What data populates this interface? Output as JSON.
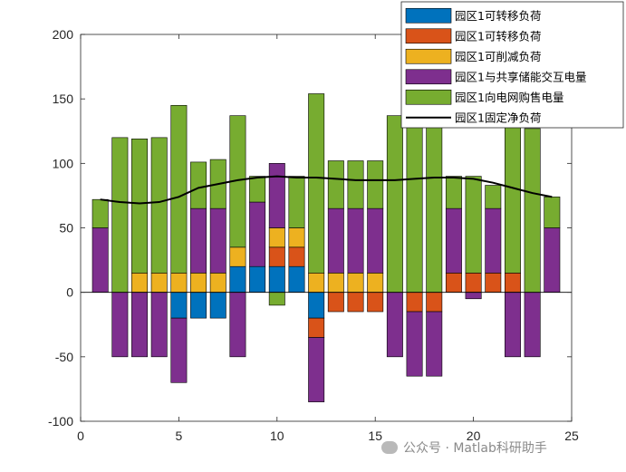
{
  "watermark": "公众号 · Matlab科研助手",
  "chart_data": {
    "type": "bar",
    "stacked": true,
    "x": [
      1,
      2,
      3,
      4,
      5,
      6,
      7,
      8,
      9,
      10,
      11,
      12,
      13,
      14,
      15,
      16,
      17,
      18,
      19,
      20,
      21,
      22,
      23,
      24
    ],
    "xlim": [
      0,
      25
    ],
    "ylim": [
      -100,
      200
    ],
    "xticks": [
      0,
      5,
      10,
      15,
      20,
      25
    ],
    "yticks": [
      -100,
      -50,
      0,
      50,
      100,
      150,
      200
    ],
    "legend_position": "top-right",
    "series": [
      {
        "name": "园区1可转移负荷",
        "color": "#0072BD",
        "values": [
          0,
          0,
          0,
          0,
          -20,
          -20,
          -20,
          20,
          20,
          20,
          20,
          -20,
          0,
          0,
          0,
          0,
          0,
          0,
          0,
          0,
          0,
          0,
          0,
          0
        ]
      },
      {
        "name": "园区1可转移负荷",
        "color": "#D95319",
        "values": [
          0,
          0,
          0,
          0,
          0,
          0,
          0,
          0,
          0,
          15,
          15,
          -15,
          -15,
          -15,
          -15,
          0,
          -15,
          -15,
          15,
          15,
          15,
          15,
          0,
          0
        ]
      },
      {
        "name": "园区1可削减负荷",
        "color": "#EDB120",
        "values": [
          0,
          0,
          15,
          15,
          15,
          15,
          15,
          15,
          0,
          15,
          15,
          15,
          15,
          15,
          15,
          0,
          0,
          0,
          0,
          0,
          0,
          0,
          0,
          0
        ]
      },
      {
        "name": "园区1与共享储能交互电量",
        "color": "#7E2F8E",
        "values": [
          50,
          -50,
          -50,
          -50,
          -50,
          50,
          50,
          -50,
          50,
          50,
          0,
          -50,
          50,
          50,
          50,
          -50,
          -50,
          -50,
          50,
          -5,
          50,
          -50,
          -50,
          50
        ]
      },
      {
        "name": "园区1向电网购售电量",
        "color": "#77AC30",
        "values": [
          22,
          120,
          104,
          105,
          130,
          36,
          38,
          102,
          20,
          -10,
          40,
          139,
          37,
          37,
          37,
          137,
          140,
          138,
          25,
          75,
          18,
          117,
          127,
          24
        ]
      }
    ],
    "line": {
      "name": "园区1固定净负荷",
      "color": "#000000",
      "values": [
        72,
        70,
        69,
        70,
        74,
        81,
        84,
        87,
        89,
        90,
        89,
        89,
        88,
        87,
        87,
        87,
        88,
        89,
        89,
        88,
        85,
        81,
        77,
        74
      ]
    }
  }
}
